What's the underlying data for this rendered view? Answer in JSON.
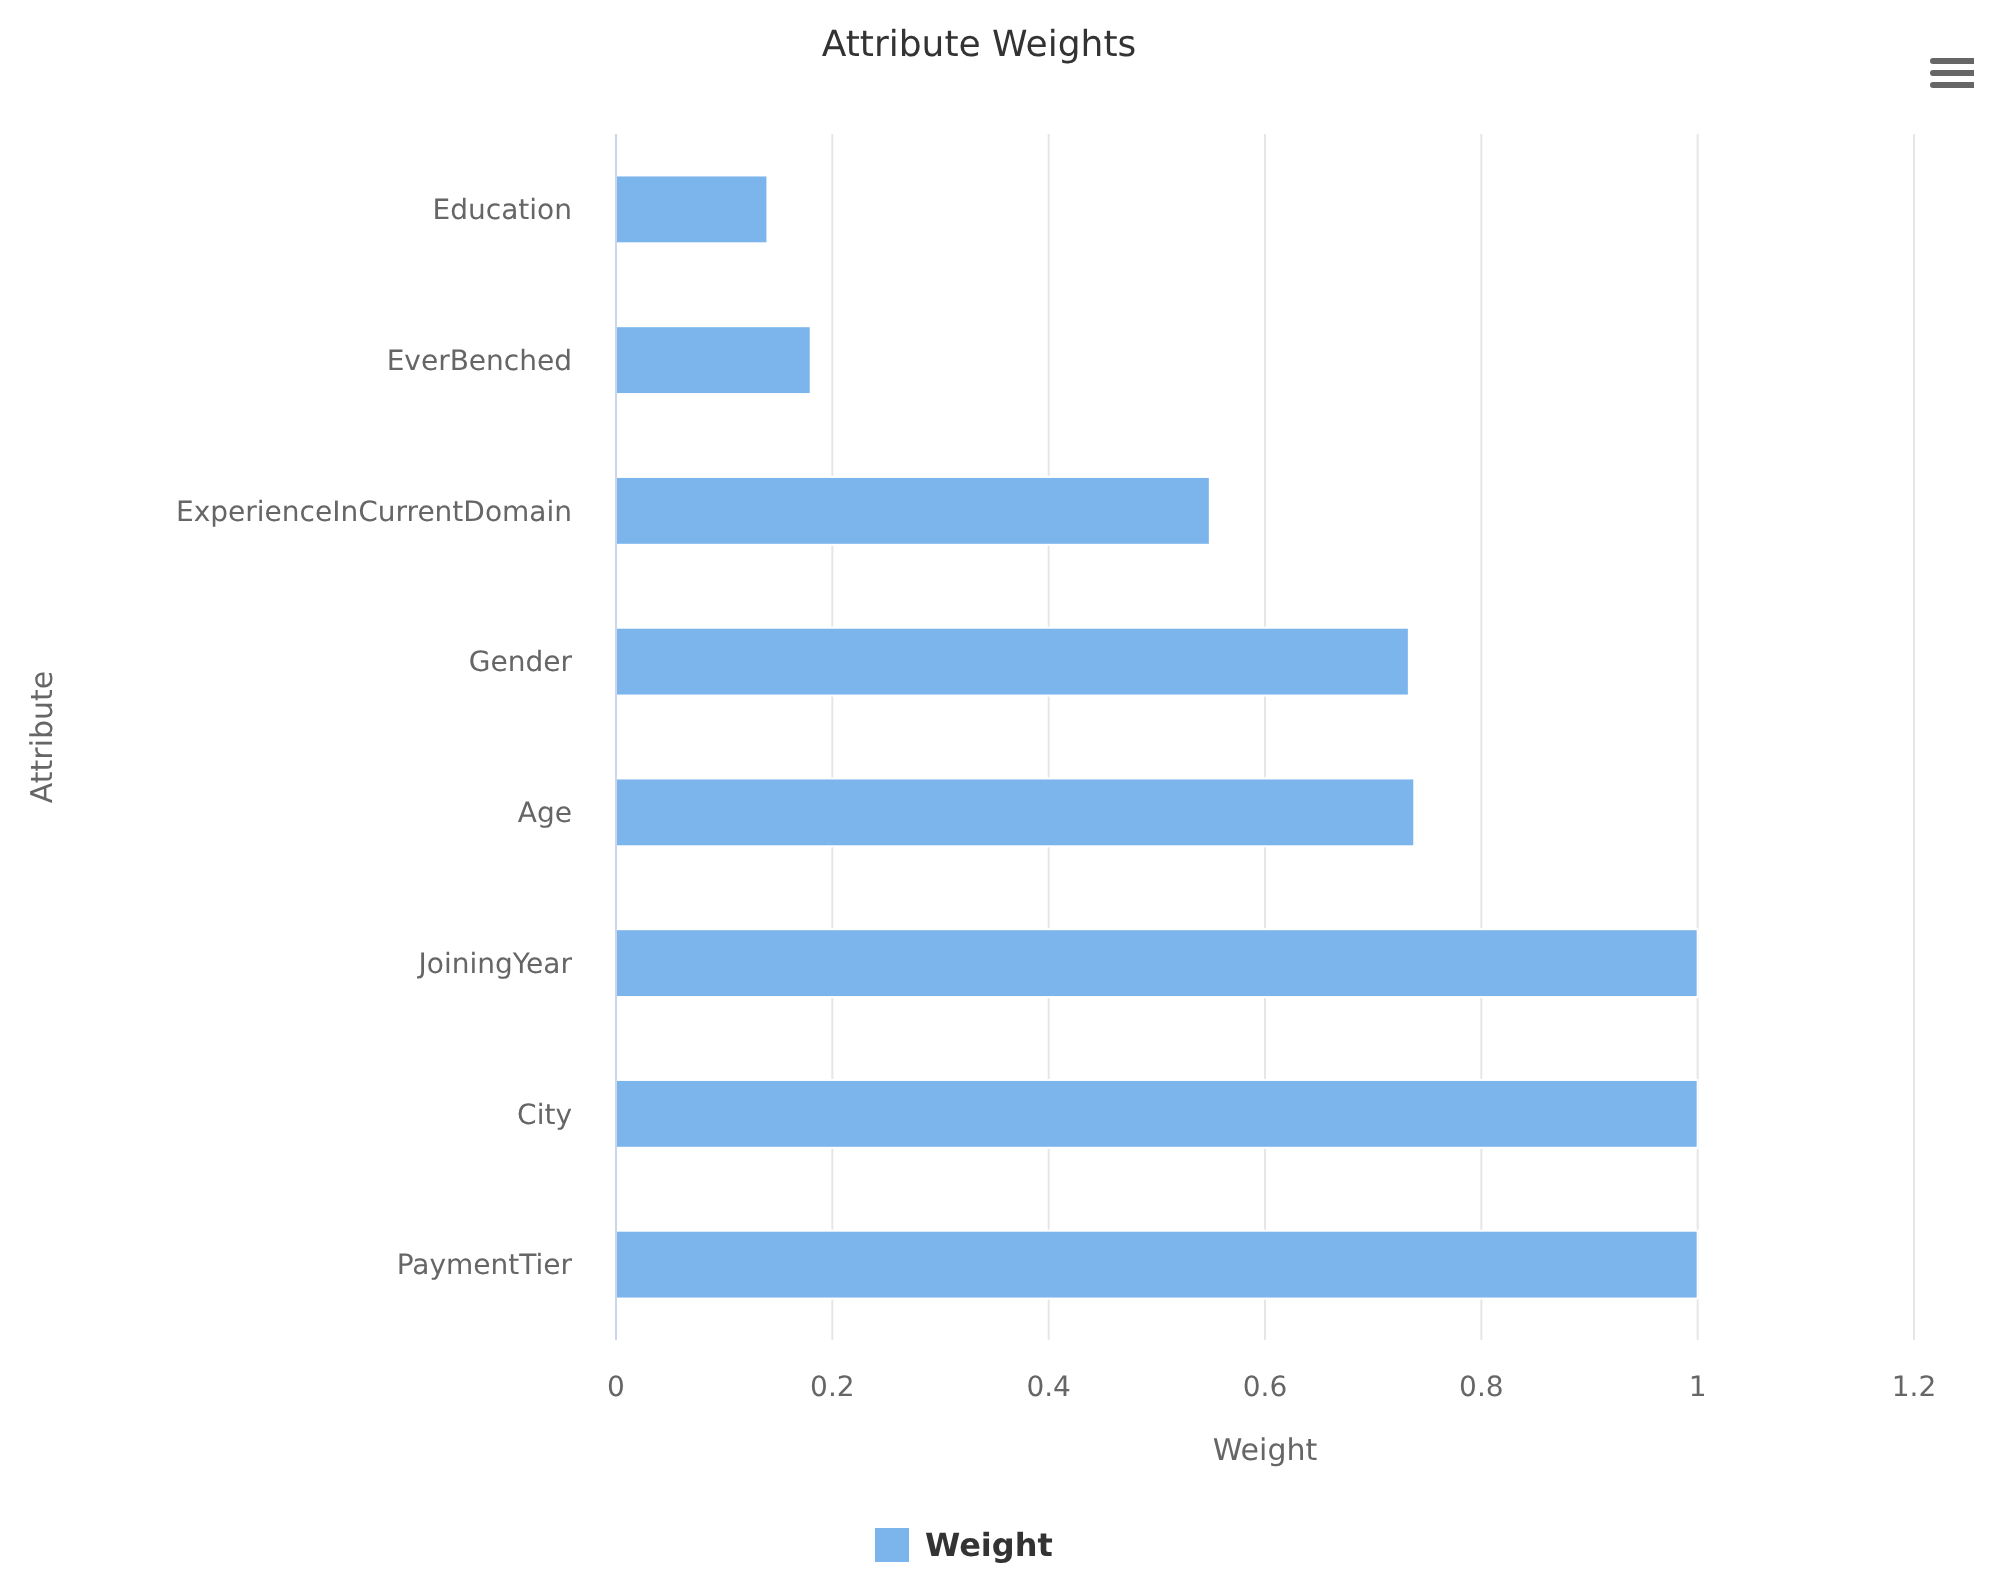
{
  "chart_data": {
    "type": "bar",
    "orientation": "horizontal",
    "title": "Attribute Weights",
    "xlabel": "Weight",
    "ylabel": "Attribute",
    "categories": [
      "Education",
      "EverBenched",
      "ExperienceInCurrentDomain",
      "Gender",
      "Age",
      "JoiningYear",
      "City",
      "PaymentTier"
    ],
    "series": [
      {
        "name": "Weight",
        "color": "#7cb5ec",
        "values": [
          0.14,
          0.18,
          0.549,
          0.733,
          0.738,
          1,
          1,
          1
        ]
      }
    ],
    "xlim": [
      0,
      1.2
    ],
    "xticks": [
      0,
      0.2,
      0.4,
      0.6,
      0.8,
      1,
      1.2
    ],
    "grid": "x",
    "legend": "bottom"
  }
}
